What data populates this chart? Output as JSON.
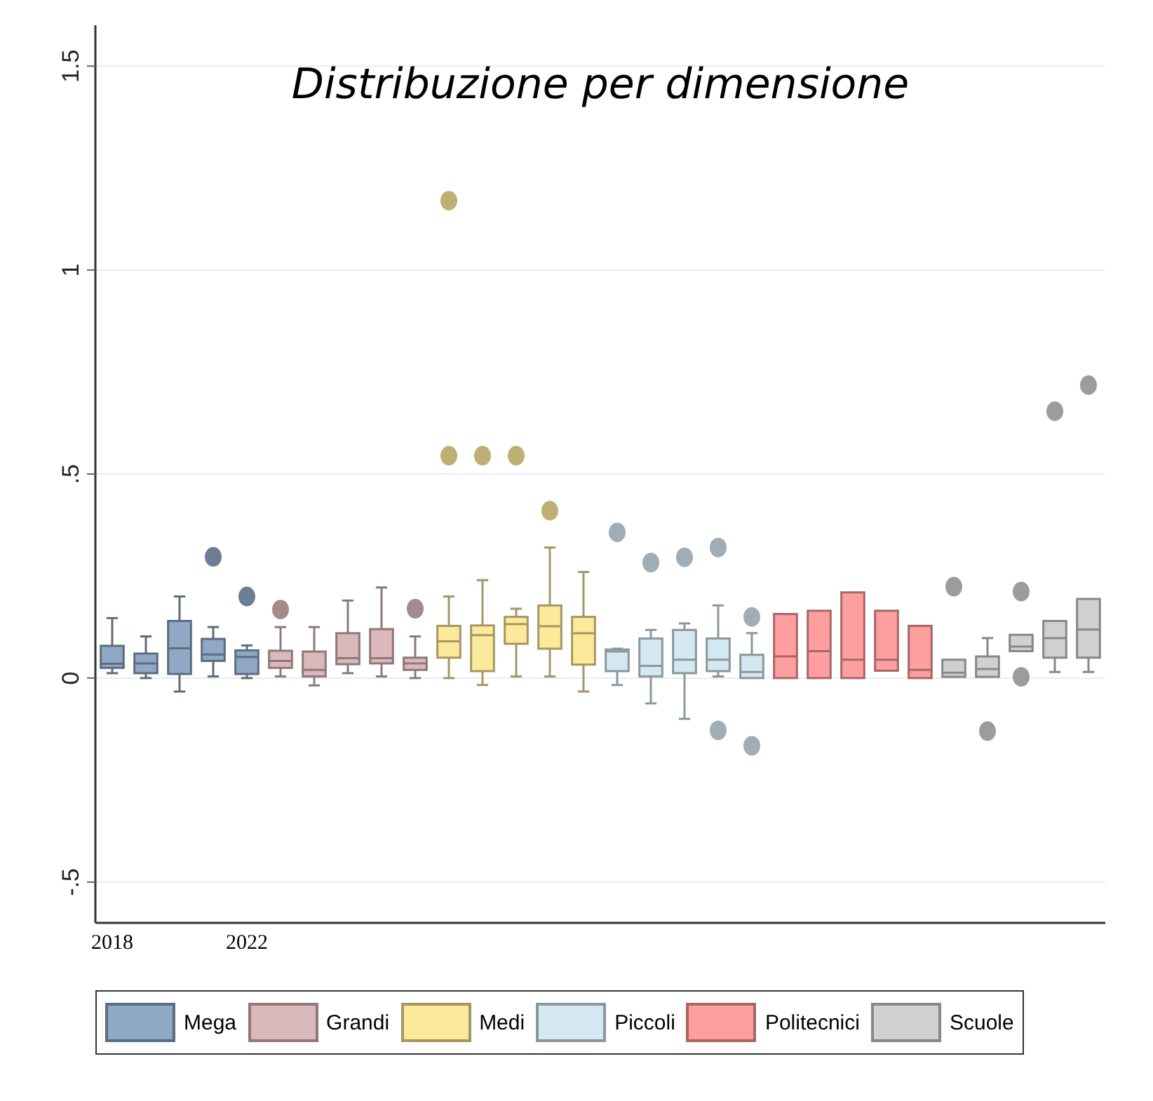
{
  "chart_data": {
    "type": "box",
    "title": "Distribuzione per dimensione",
    "categories": [
      "2018",
      null,
      null,
      null,
      "2022",
      null,
      null,
      null,
      null,
      null,
      null,
      null,
      null,
      null,
      null,
      null,
      null,
      null,
      null,
      null,
      null,
      null,
      null,
      null,
      null,
      null,
      null,
      null,
      null,
      null
    ],
    "ylim": [
      -0.6,
      1.6
    ],
    "yticks": [
      {
        "value": -0.5,
        "label": "-.5"
      },
      0,
      {
        "value": 0.5,
        "label": ".5"
      },
      1,
      1.5
    ],
    "grid": "y",
    "legend": "bottom",
    "series": [
      {
        "name": "Mega",
        "color": "#8fa8c4",
        "boxes": [
          {
            "low": 0.012,
            "q1": 0.025,
            "median": 0.035,
            "q3": 0.079,
            "high": 0.147
          },
          {
            "low": 0,
            "q1": 0.012,
            "median": 0.036,
            "q3": 0.06,
            "high": 0.102
          },
          {
            "low": -0.033,
            "q1": 0.01,
            "median": 0.073,
            "q3": 0.14,
            "high": 0.2
          },
          {
            "low": 0.004,
            "q1": 0.042,
            "median": 0.058,
            "q3": 0.096,
            "high": 0.125,
            "outliers": [
              0.297
            ]
          },
          {
            "low": 0,
            "q1": 0.01,
            "median": 0.052,
            "q3": 0.068,
            "high": 0.08,
            "outliers": [
              0.2
            ]
          },
          null,
          null,
          null,
          null,
          null,
          null,
          null,
          null,
          null,
          null,
          null,
          null,
          null,
          null,
          null,
          null,
          null,
          null,
          null,
          null,
          null,
          null,
          null,
          null,
          null
        ]
      },
      {
        "name": "Grandi",
        "color": "#dbb8bc",
        "boxes": [
          null,
          null,
          null,
          null,
          null,
          {
            "low": 0.004,
            "q1": 0.025,
            "median": 0.042,
            "q3": 0.067,
            "high": 0.125,
            "outliers": [
              0.168
            ]
          },
          {
            "low": -0.018,
            "q1": 0.004,
            "median": 0.02,
            "q3": 0.065,
            "high": 0.125
          },
          {
            "low": 0.012,
            "q1": 0.034,
            "median": 0.049,
            "q3": 0.11,
            "high": 0.19
          },
          {
            "low": 0.004,
            "q1": 0.036,
            "median": 0.049,
            "q3": 0.12,
            "high": 0.222
          },
          {
            "low": 0,
            "q1": 0.02,
            "median": 0.036,
            "q3": 0.05,
            "high": 0.102,
            "outliers": [
              0.17
            ]
          },
          null,
          null,
          null,
          null,
          null,
          null,
          null,
          null,
          null,
          null,
          null,
          null,
          null,
          null,
          null,
          null,
          null,
          null,
          null,
          null
        ]
      },
      {
        "name": "Medi",
        "color": "#fde99a",
        "boxes": [
          null,
          null,
          null,
          null,
          null,
          null,
          null,
          null,
          null,
          null,
          {
            "low": 0,
            "q1": 0.05,
            "median": 0.09,
            "q3": 0.128,
            "high": 0.2,
            "outliers": [
              0.545,
              1.17
            ]
          },
          {
            "low": -0.017,
            "q1": 0.017,
            "median": 0.105,
            "q3": 0.129,
            "high": 0.24,
            "outliers": [
              0.545
            ]
          },
          {
            "low": 0.004,
            "q1": 0.084,
            "median": 0.132,
            "q3": 0.15,
            "high": 0.17,
            "outliers": [
              0.545
            ]
          },
          {
            "low": 0.004,
            "q1": 0.072,
            "median": 0.127,
            "q3": 0.178,
            "high": 0.32,
            "outliers": [
              0.41
            ]
          },
          {
            "low": -0.033,
            "q1": 0.033,
            "median": 0.11,
            "q3": 0.15,
            "high": 0.26
          },
          null,
          null,
          null,
          null,
          null,
          null,
          null,
          null,
          null,
          null,
          null,
          null,
          null,
          null,
          null
        ]
      },
      {
        "name": "Piccoli",
        "color": "#d4e8f2",
        "boxes": [
          null,
          null,
          null,
          null,
          null,
          null,
          null,
          null,
          null,
          null,
          null,
          null,
          null,
          null,
          null,
          {
            "low": -0.017,
            "q1": 0.017,
            "median": 0.065,
            "q3": 0.07,
            "high": 0.072,
            "outliers": [
              0.357
            ]
          },
          {
            "low": -0.062,
            "q1": 0.004,
            "median": 0.03,
            "q3": 0.097,
            "high": 0.118,
            "outliers": [
              0.283
            ]
          },
          {
            "low": -0.1,
            "q1": 0.012,
            "median": 0.045,
            "q3": 0.118,
            "high": 0.134,
            "outliers": [
              0.296
            ]
          },
          {
            "low": 0.004,
            "q1": 0.017,
            "median": 0.045,
            "q3": 0.097,
            "high": 0.178,
            "outliers": [
              0.32,
              -0.128
            ]
          },
          {
            "low": 0,
            "q1": 0,
            "median": 0.015,
            "q3": 0.057,
            "high": 0.11,
            "outliers": [
              0.15,
              -0.166
            ]
          },
          null,
          null,
          null,
          null,
          null,
          null,
          null,
          null,
          null,
          null
        ]
      },
      {
        "name": "Politecnici",
        "color": "#ff9e9e",
        "boxes": [
          null,
          null,
          null,
          null,
          null,
          null,
          null,
          null,
          null,
          null,
          null,
          null,
          null,
          null,
          null,
          null,
          null,
          null,
          null,
          null,
          {
            "low": 0,
            "q1": 0,
            "median": 0.053,
            "q3": 0.157,
            "high": 0.157
          },
          {
            "low": 0,
            "q1": 0,
            "median": 0.066,
            "q3": 0.165,
            "high": 0.165
          },
          {
            "low": 0,
            "q1": 0,
            "median": 0.045,
            "q3": 0.21,
            "high": 0.21
          },
          {
            "low": 0.018,
            "q1": 0.018,
            "median": 0.045,
            "q3": 0.165,
            "high": 0.165
          },
          {
            "low": 0,
            "q1": 0,
            "median": 0.02,
            "q3": 0.128,
            "high": 0.128
          },
          null,
          null,
          null,
          null,
          null
        ]
      },
      {
        "name": "Scuole",
        "color": "#d0d0d0",
        "boxes": [
          null,
          null,
          null,
          null,
          null,
          null,
          null,
          null,
          null,
          null,
          null,
          null,
          null,
          null,
          null,
          null,
          null,
          null,
          null,
          null,
          null,
          null,
          null,
          null,
          null,
          {
            "low": 0.003,
            "q1": 0.003,
            "median": 0.013,
            "q3": 0.045,
            "high": 0.045,
            "outliers": [
              0.224
            ]
          },
          {
            "low": 0.003,
            "q1": 0.003,
            "median": 0.022,
            "q3": 0.053,
            "high": 0.098,
            "outliers": [
              -0.13
            ]
          },
          {
            "low": 0.066,
            "q1": 0.066,
            "median": 0.077,
            "q3": 0.106,
            "high": 0.106,
            "outliers": [
              0.212,
              0.003
            ]
          },
          {
            "low": 0.015,
            "q1": 0.05,
            "median": 0.098,
            "q3": 0.14,
            "high": 0.14,
            "outliers": [
              0.654
            ]
          },
          {
            "low": 0.015,
            "q1": 0.05,
            "median": 0.119,
            "q3": 0.194,
            "high": 0.194,
            "outliers": [
              0.718
            ]
          }
        ]
      }
    ]
  }
}
